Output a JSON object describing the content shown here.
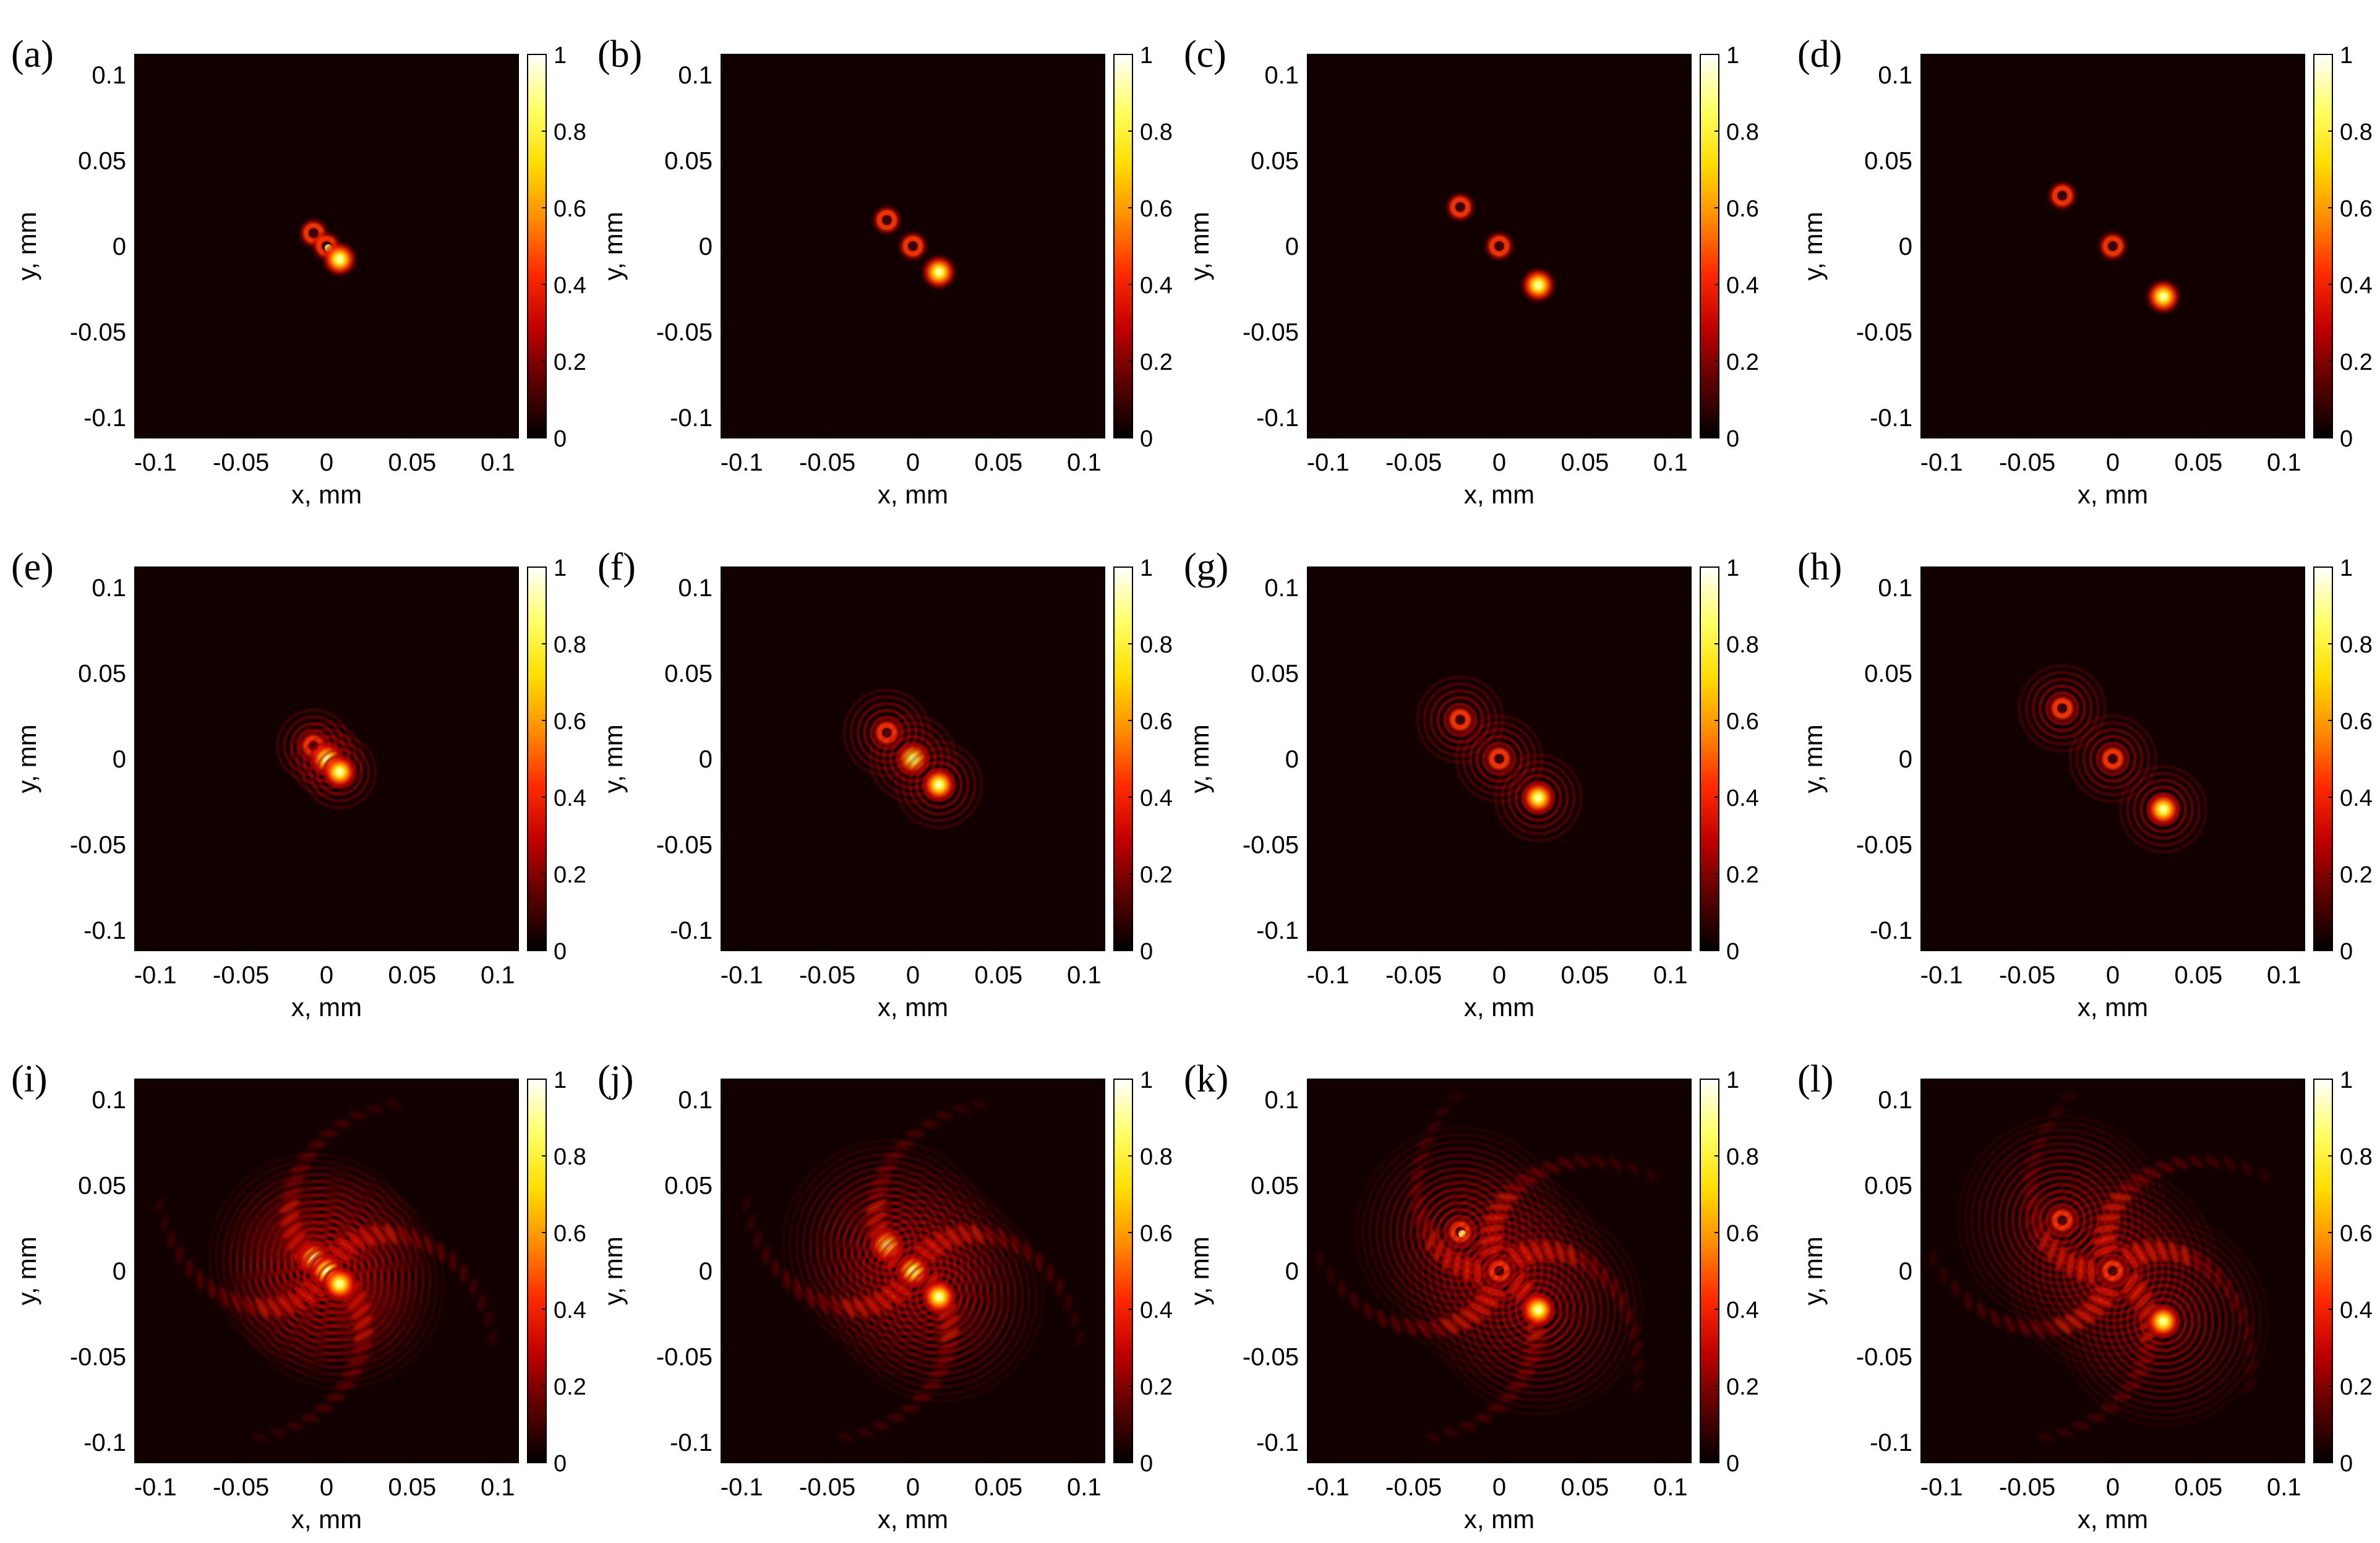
{
  "figure": {
    "panels": [
      {
        "label": "(a)",
        "row": 0,
        "col": 0,
        "spots": [
          {
            "x": -0.0076,
            "y": 0.0076,
            "peak": 0.55,
            "kind": "ring"
          },
          {
            "x": 0,
            "y": 0,
            "peak": 0.85,
            "kind": "ring"
          },
          {
            "x": 0.0076,
            "y": -0.0076,
            "peak": 1.0,
            "kind": "peak"
          }
        ],
        "rings": 0,
        "arms": 0
      },
      {
        "label": "(b)",
        "row": 0,
        "col": 1,
        "spots": [
          {
            "x": -0.0152,
            "y": 0.0152,
            "peak": 0.55,
            "kind": "ring"
          },
          {
            "x": 0,
            "y": 0,
            "peak": 0.5,
            "kind": "ring"
          },
          {
            "x": 0.0152,
            "y": -0.0152,
            "peak": 1.0,
            "kind": "peak"
          }
        ],
        "rings": 0,
        "arms": 0
      },
      {
        "label": "(c)",
        "row": 0,
        "col": 2,
        "spots": [
          {
            "x": -0.0228,
            "y": 0.0228,
            "peak": 0.55,
            "kind": "ring"
          },
          {
            "x": 0,
            "y": 0,
            "peak": 0.5,
            "kind": "ring"
          },
          {
            "x": 0.0228,
            "y": -0.0228,
            "peak": 1.0,
            "kind": "peak"
          }
        ],
        "rings": 0,
        "arms": 0
      },
      {
        "label": "(d)",
        "row": 0,
        "col": 3,
        "spots": [
          {
            "x": -0.0295,
            "y": 0.0295,
            "peak": 0.55,
            "kind": "ring"
          },
          {
            "x": 0,
            "y": 0,
            "peak": 0.5,
            "kind": "ring"
          },
          {
            "x": 0.0295,
            "y": -0.0295,
            "peak": 1.0,
            "kind": "peak"
          }
        ],
        "rings": 0,
        "arms": 0
      },
      {
        "label": "(e)",
        "row": 1,
        "col": 0,
        "spots": [
          {
            "x": -0.0076,
            "y": 0.0076,
            "peak": 0.6,
            "kind": "ring"
          },
          {
            "x": 0,
            "y": 0,
            "peak": 0.9,
            "kind": "peak"
          },
          {
            "x": 0.0076,
            "y": -0.0076,
            "peak": 1.0,
            "kind": "peak"
          }
        ],
        "rings": 4,
        "arms": 0
      },
      {
        "label": "(f)",
        "row": 1,
        "col": 1,
        "spots": [
          {
            "x": -0.0152,
            "y": 0.0152,
            "peak": 0.75,
            "kind": "ring"
          },
          {
            "x": 0,
            "y": 0,
            "peak": 0.85,
            "kind": "peak"
          },
          {
            "x": 0.0152,
            "y": -0.0152,
            "peak": 1.0,
            "kind": "peak"
          }
        ],
        "rings": 5,
        "arms": 0
      },
      {
        "label": "(g)",
        "row": 1,
        "col": 2,
        "spots": [
          {
            "x": -0.0228,
            "y": 0.0228,
            "peak": 0.7,
            "kind": "ring"
          },
          {
            "x": 0,
            "y": 0,
            "peak": 0.75,
            "kind": "ring"
          },
          {
            "x": 0.0228,
            "y": -0.0228,
            "peak": 1.0,
            "kind": "peak"
          }
        ],
        "rings": 5,
        "arms": 0
      },
      {
        "label": "(h)",
        "row": 1,
        "col": 3,
        "spots": [
          {
            "x": -0.0295,
            "y": 0.0295,
            "peak": 0.65,
            "kind": "ring"
          },
          {
            "x": 0,
            "y": 0,
            "peak": 0.6,
            "kind": "ring"
          },
          {
            "x": 0.0295,
            "y": -0.0295,
            "peak": 1.0,
            "kind": "peak"
          }
        ],
        "rings": 5,
        "arms": 0
      },
      {
        "label": "(i)",
        "row": 2,
        "col": 0,
        "spots": [
          {
            "x": -0.0076,
            "y": 0.0076,
            "peak": 0.85,
            "kind": "peak"
          },
          {
            "x": 0,
            "y": 0,
            "peak": 0.95,
            "kind": "peak"
          },
          {
            "x": 0.0076,
            "y": -0.0076,
            "peak": 1.0,
            "kind": "peak"
          }
        ],
        "rings": 14,
        "arms": 4
      },
      {
        "label": "(j)",
        "row": 2,
        "col": 1,
        "spots": [
          {
            "x": -0.0152,
            "y": 0.0152,
            "peak": 0.8,
            "kind": "peak"
          },
          {
            "x": 0,
            "y": 0,
            "peak": 0.9,
            "kind": "peak"
          },
          {
            "x": 0.0152,
            "y": -0.0152,
            "peak": 1.0,
            "kind": "peak"
          }
        ],
        "rings": 14,
        "arms": 4
      },
      {
        "label": "(k)",
        "row": 2,
        "col": 2,
        "spots": [
          {
            "x": -0.0228,
            "y": 0.0228,
            "peak": 0.8,
            "kind": "ring"
          },
          {
            "x": 0,
            "y": 0,
            "peak": 0.75,
            "kind": "ring"
          },
          {
            "x": 0.0228,
            "y": -0.0228,
            "peak": 1.0,
            "kind": "peak"
          }
        ],
        "rings": 14,
        "arms": 5
      },
      {
        "label": "(l)",
        "row": 2,
        "col": 3,
        "spots": [
          {
            "x": -0.0295,
            "y": 0.0295,
            "peak": 0.75,
            "kind": "ring"
          },
          {
            "x": 0,
            "y": 0,
            "peak": 0.7,
            "kind": "ring"
          },
          {
            "x": 0.0295,
            "y": -0.0295,
            "peak": 1.0,
            "kind": "peak"
          }
        ],
        "rings": 14,
        "arms": 5
      }
    ]
  },
  "chart_data": {
    "type": "heatmap",
    "xlabel": "x, mm",
    "ylabel": "y, mm",
    "xlim": [
      -0.112,
      0.112
    ],
    "ylim": [
      -0.112,
      0.112
    ],
    "xticks": [
      -0.1,
      -0.05,
      0,
      0.05,
      0.1
    ],
    "xtick_labels": [
      "-0.1",
      "-0.05",
      "0",
      "0.05",
      "0.1"
    ],
    "yticks": [
      0.1,
      0.05,
      0,
      -0.05,
      -0.1
    ],
    "ytick_labels": [
      "0.1",
      "0.05",
      "0",
      "-0.05",
      "-0.1"
    ],
    "colorbar": {
      "range": [
        0,
        1
      ],
      "ticks": [
        1,
        0.8,
        0.6,
        0.4,
        0.2,
        0
      ],
      "tick_labels": [
        "1",
        "0.8",
        "0.6",
        "0.4",
        "0.2",
        "0"
      ],
      "colormap": "hot",
      "colors": [
        "#000000",
        "#5a0000",
        "#c00000",
        "#ff2a00",
        "#ff8c00",
        "#ffdd00",
        "#ffff66",
        "#ffffff"
      ]
    },
    "background_color": "#120000",
    "grid": false
  }
}
